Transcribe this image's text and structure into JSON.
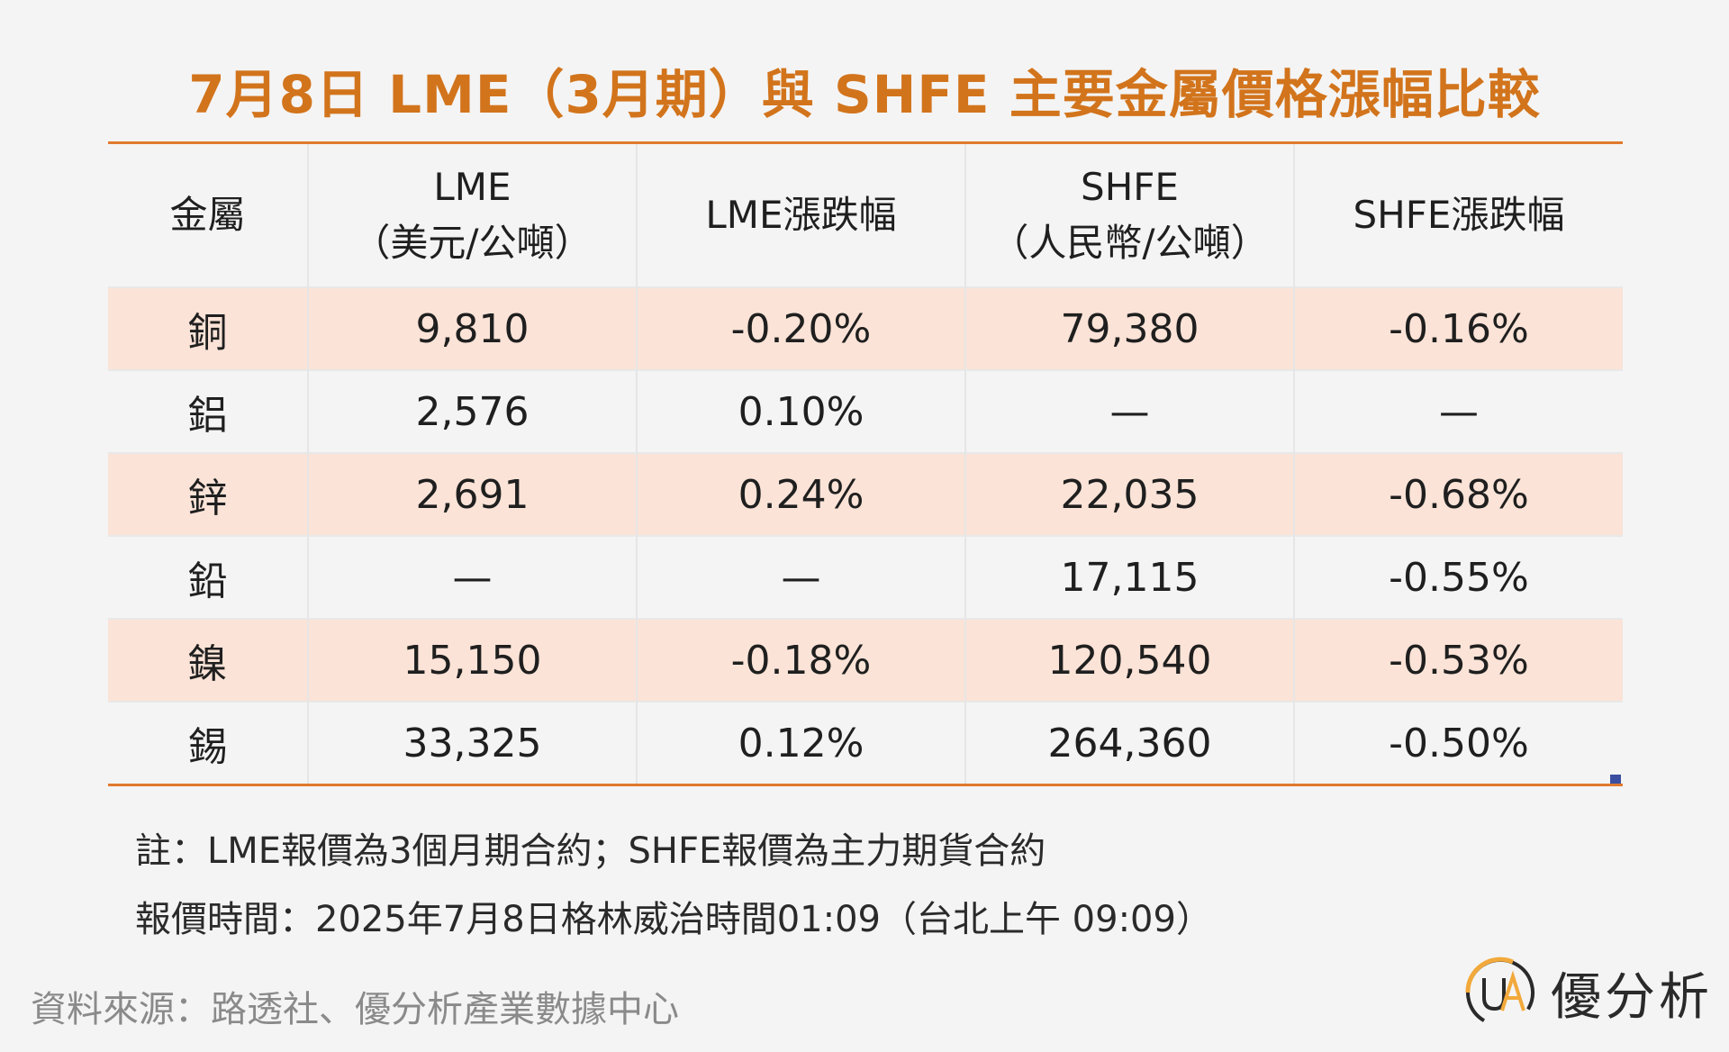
{
  "title": "7月8日 LME（3月期）與 SHFE 主要金屬價格漲幅比較",
  "table": {
    "headers": [
      {
        "line1": "金屬",
        "line2": ""
      },
      {
        "line1": "LME",
        "line2": "（美元/公噸）"
      },
      {
        "line1": "LME漲跌幅",
        "line2": ""
      },
      {
        "line1": "SHFE",
        "line2": "（人民幣/公噸）"
      },
      {
        "line1": "SHFE漲跌幅",
        "line2": ""
      }
    ],
    "rows": [
      {
        "metal": "銅",
        "lme": "9,810",
        "lme_change": "-0.20%",
        "shfe": "79,380",
        "shfe_change": "-0.16%"
      },
      {
        "metal": "鋁",
        "lme": "2,576",
        "lme_change": "0.10%",
        "shfe": "—",
        "shfe_change": "—"
      },
      {
        "metal": "鋅",
        "lme": "2,691",
        "lme_change": "0.24%",
        "shfe": "22,035",
        "shfe_change": "-0.68%"
      },
      {
        "metal": "鉛",
        "lme": "—",
        "lme_change": "—",
        "shfe": "17,115",
        "shfe_change": "-0.55%"
      },
      {
        "metal": "鎳",
        "lme": "15,150",
        "lme_change": "-0.18%",
        "shfe": "120,540",
        "shfe_change": "-0.53%"
      },
      {
        "metal": "錫",
        "lme": "33,325",
        "lme_change": "0.12%",
        "shfe": "264,360",
        "shfe_change": "-0.50%"
      }
    ]
  },
  "notes": {
    "line1": "註：LME報價為3個月期合約；SHFE報價為主力期貨合約",
    "line2": "報價時間：2025年7月8日格林威治時間01:09（台北上午 09:09）"
  },
  "source": "資料來源：路透社、優分析產業數據中心",
  "logo": {
    "icon": "ua-logo-icon",
    "brand": "優分析"
  },
  "colors": {
    "title": "#d2741c",
    "rule": "#e07a2e",
    "shaded_row": "#fbe3d7",
    "background": "#f4f4f4"
  }
}
